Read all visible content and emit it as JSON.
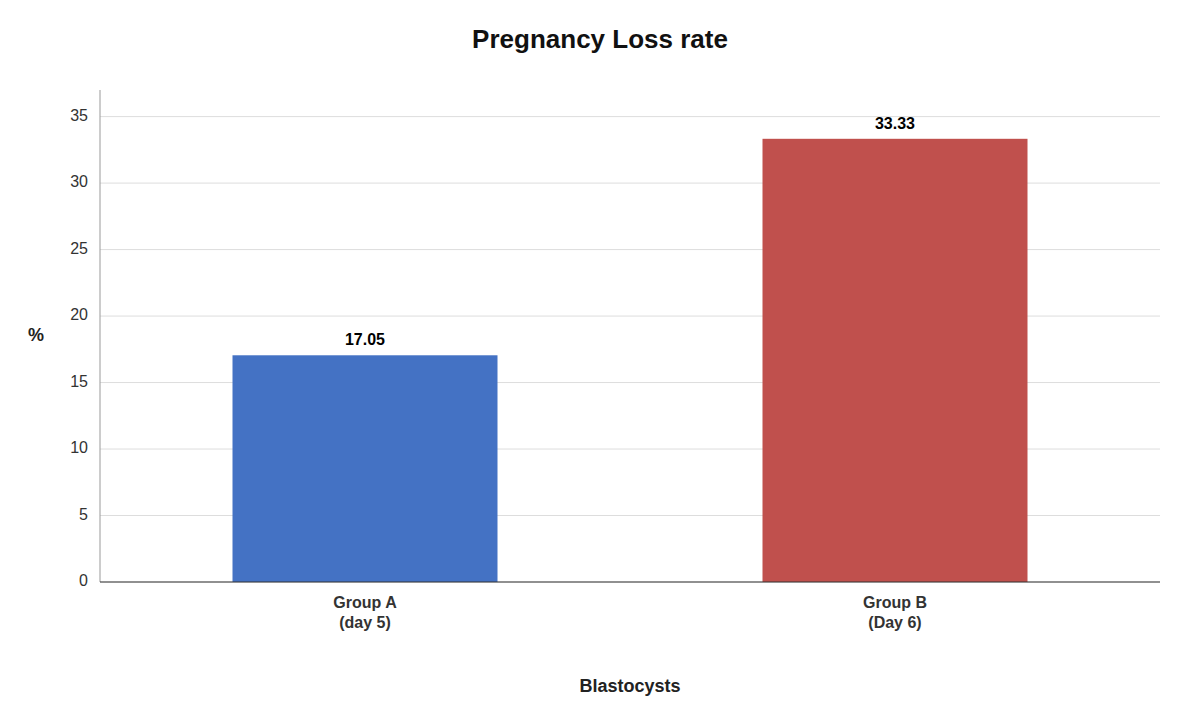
{
  "chart_data": {
    "type": "bar",
    "title": "Pregnancy Loss rate",
    "x_label": "Blastocysts",
    "y_label": "%",
    "categories": [
      "Group A\n(day 5)",
      "Group B\n(Day 6)"
    ],
    "values": [
      17.05,
      33.33
    ],
    "colors": [
      "#4472C4",
      "#C0504D"
    ],
    "ylim": [
      0,
      37
    ],
    "yticks": [
      0,
      5,
      10,
      15,
      20,
      25,
      30,
      35
    ],
    "grid": true,
    "data_labels": true
  }
}
